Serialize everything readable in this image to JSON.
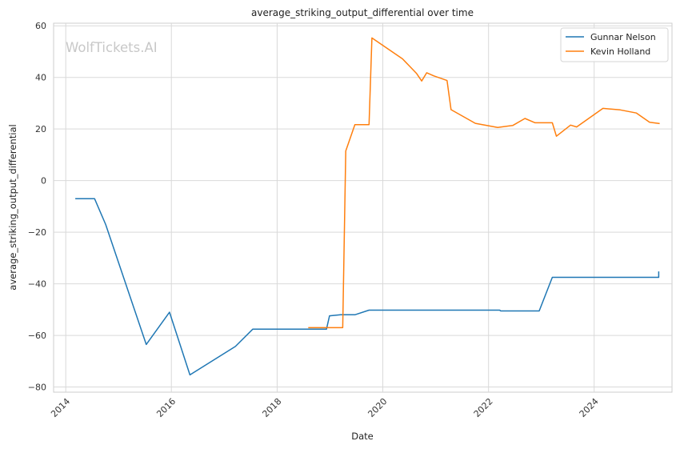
{
  "chart_data": {
    "type": "line",
    "title": "average_striking_output_differential over time",
    "xlabel": "Date",
    "ylabel": "average_striking_output_differential",
    "watermark": "WolfTickets.AI",
    "xlim": [
      "2013-10-09",
      "2025-06-22"
    ],
    "ylim": [
      -82,
      61
    ],
    "x_ticks": [
      "2014-01-01",
      "2016-01-01",
      "2018-01-01",
      "2020-01-01",
      "2022-01-01",
      "2024-01-01"
    ],
    "x_tick_labels": [
      "2014",
      "2016",
      "2018",
      "2020",
      "2022",
      "2024"
    ],
    "y_ticks": [
      -80,
      -60,
      -40,
      -20,
      0,
      20,
      40,
      60
    ],
    "y_tick_labels": [
      "−80",
      "−60",
      "−40",
      "−20",
      "0",
      "20",
      "40",
      "60"
    ],
    "grid": true,
    "legend_position": "top-right",
    "series": [
      {
        "name": "Gunnar Nelson",
        "color": "#1f77b4",
        "points": [
          [
            "2014-03-08",
            -7
          ],
          [
            "2014-07-19",
            -7
          ],
          [
            "2014-10-04",
            -17
          ],
          [
            "2015-07-11",
            -63.5
          ],
          [
            "2015-12-19",
            -51
          ],
          [
            "2016-05-08",
            -75.3
          ],
          [
            "2017-03-18",
            -64.3
          ],
          [
            "2017-07-16",
            -57.6
          ],
          [
            "2018-12-08",
            -57.6
          ],
          [
            "2018-12-29",
            -52.4
          ],
          [
            "2019-03-16",
            -52
          ],
          [
            "2019-06-22",
            -52
          ],
          [
            "2019-09-28",
            -50.2
          ],
          [
            "2022-03-19",
            -50.2
          ],
          [
            "2022-03-26",
            -50.5
          ],
          [
            "2022-12-17",
            -50.5
          ],
          [
            "2023-03-18",
            -37.5
          ],
          [
            "2025-03-22",
            -37.5
          ],
          [
            "2025-03-22",
            -37.5
          ],
          [
            "2025-03-22",
            -37.5
          ],
          [
            "2025-03-22",
            -35.2
          ]
        ]
      },
      {
        "name": "Kevin Holland",
        "color": "#ff7f0e",
        "points": [
          [
            "2018-08-04",
            -57
          ],
          [
            "2019-03-30",
            -57
          ],
          [
            "2019-04-20",
            11.5
          ],
          [
            "2019-06-22",
            21.7
          ],
          [
            "2019-09-28",
            21.7
          ],
          [
            "2019-10-18",
            55.3
          ],
          [
            "2020-05-16",
            47.2
          ],
          [
            "2020-08-22",
            41.5
          ],
          [
            "2020-09-26",
            38.6
          ],
          [
            "2020-10-31",
            41.8
          ],
          [
            "2020-12-19",
            40.6
          ],
          [
            "2021-03-20",
            38.8
          ],
          [
            "2021-04-17",
            27.5
          ],
          [
            "2021-10-02",
            22.2
          ],
          [
            "2022-03-05",
            20.6
          ],
          [
            "2022-06-18",
            21.4
          ],
          [
            "2022-09-10",
            24.1
          ],
          [
            "2022-11-19",
            22.4
          ],
          [
            "2023-03-18",
            22.4
          ],
          [
            "2023-04-15",
            17.2
          ],
          [
            "2023-07-22",
            21.5
          ],
          [
            "2023-09-02",
            20.8
          ],
          [
            "2024-03-02",
            28
          ],
          [
            "2024-06-29",
            27.4
          ],
          [
            "2024-10-19",
            26.2
          ],
          [
            "2025-01-18",
            22.6
          ],
          [
            "2025-03-29",
            22.1
          ]
        ]
      }
    ]
  }
}
